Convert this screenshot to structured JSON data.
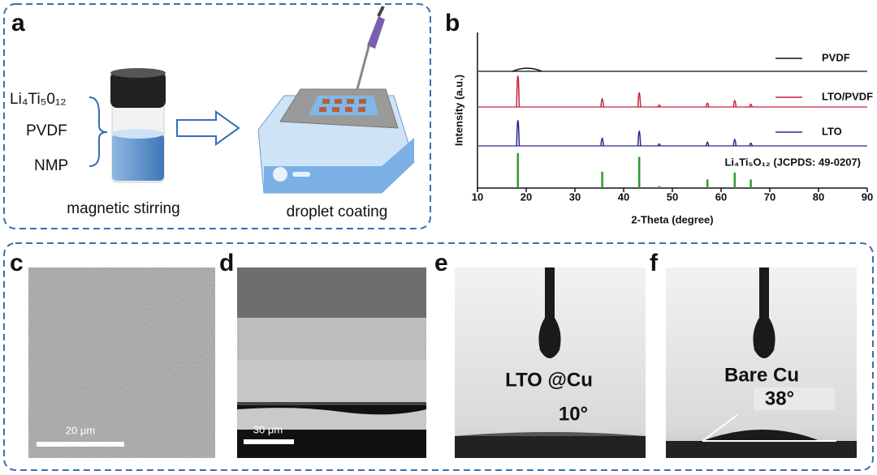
{
  "figure": {
    "panel_labels": [
      "a",
      "b",
      "c",
      "d",
      "e",
      "f"
    ],
    "panel_a": {
      "components": [
        "Li₄Ti₅0₁₂",
        "PVDF",
        "NMP"
      ],
      "steps": [
        "magnetic stirring",
        "droplet coating"
      ]
    },
    "panel_c": {
      "scale_bar": "20 μm"
    },
    "panel_d": {
      "scale_bar": "30 μm"
    },
    "panel_e": {
      "sample": "LTO @Cu",
      "angle": "10°"
    },
    "panel_f": {
      "sample": "Bare Cu",
      "angle": "38°"
    }
  },
  "chart_data": {
    "type": "line",
    "xlabel": "2-Theta (degree)",
    "ylabel": "Intensity (a.u.)",
    "xlim": [
      10,
      90
    ],
    "xticks": [
      10,
      20,
      30,
      40,
      50,
      60,
      70,
      80,
      90
    ],
    "series": [
      {
        "name": "PVDF",
        "color": "#111111",
        "x": [
          20.2
        ],
        "values": [
          0.08
        ]
      },
      {
        "name": "LTO/PVDF",
        "color": "#c8243c",
        "x": [
          18.3,
          35.6,
          43.2,
          47.3,
          57.2,
          62.8,
          66.1
        ],
        "values": [
          0.8,
          0.22,
          0.37,
          0.05,
          0.1,
          0.17,
          0.07
        ]
      },
      {
        "name": "LTO",
        "color": "#2a2a8c",
        "x": [
          18.3,
          35.6,
          43.2,
          47.3,
          57.2,
          62.8,
          66.1
        ],
        "values": [
          0.65,
          0.2,
          0.38,
          0.05,
          0.1,
          0.17,
          0.07
        ]
      },
      {
        "name": "Li₄Ti₅O₁₂ (JCPDS: 49-0207)",
        "color": "#2e9a2e",
        "x": [
          18.3,
          35.6,
          43.2,
          47.3,
          57.2,
          62.8,
          66.1
        ],
        "values": [
          0.9,
          0.42,
          0.8,
          0.05,
          0.22,
          0.4,
          0.22
        ]
      }
    ]
  }
}
